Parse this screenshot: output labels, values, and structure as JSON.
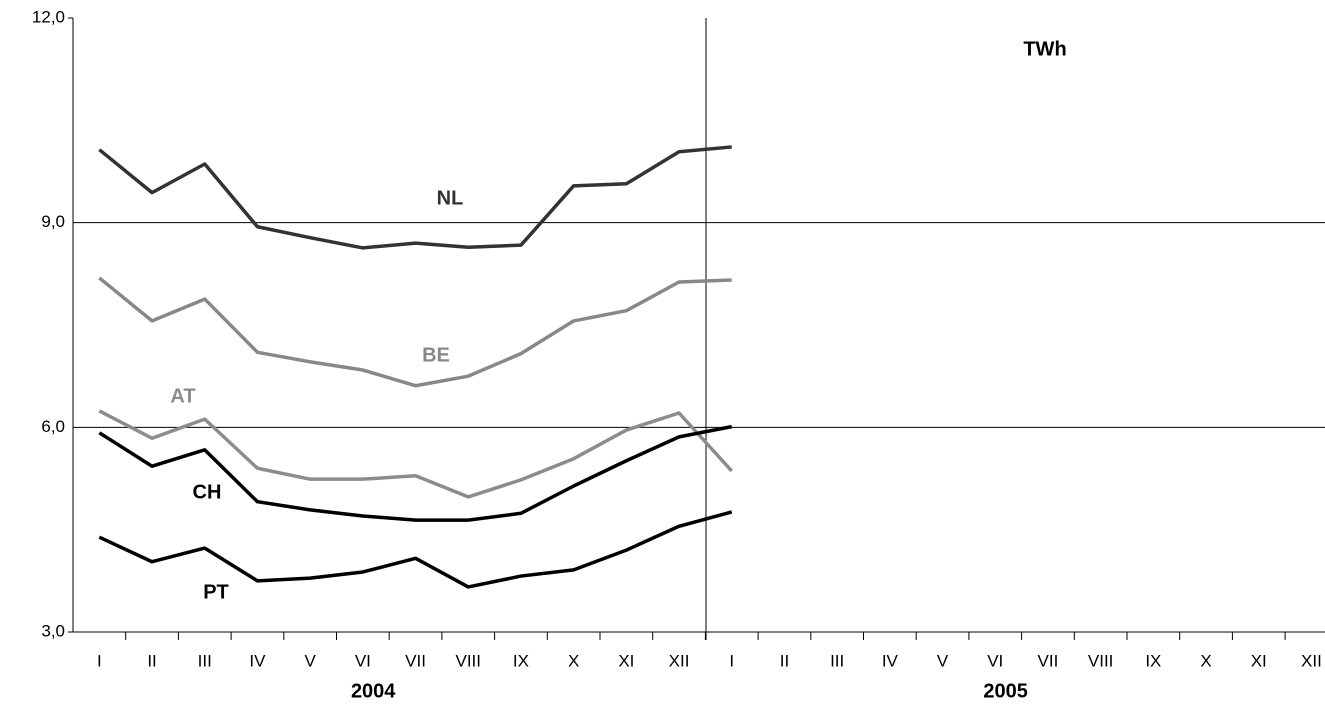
{
  "chart_data": {
    "type": "line",
    "unit_label": "TWh",
    "categories": [
      "I",
      "II",
      "III",
      "IV",
      "V",
      "VI",
      "VII",
      "VIII",
      "IX",
      "X",
      "XI",
      "XII",
      "I",
      "II",
      "III",
      "IV",
      "V",
      "VI",
      "VII",
      "VIII",
      "IX",
      "X",
      "XI",
      "XII"
    ],
    "x_groups": [
      "2004",
      "2005"
    ],
    "ylim": [
      3,
      12
    ],
    "yticks": [
      {
        "value": 3,
        "label": "3,0"
      },
      {
        "value": 6,
        "label": "6,0"
      },
      {
        "value": 9,
        "label": "9,0"
      },
      {
        "value": 12,
        "label": "12,0"
      }
    ],
    "grid": true,
    "series": [
      {
        "name": "NL",
        "color": "#333333",
        "values": [
          10.07,
          9.44,
          9.86,
          8.94,
          8.78,
          8.63,
          8.7,
          8.64,
          8.67,
          9.54,
          9.57,
          10.04,
          10.11,
          null,
          null,
          null,
          null,
          null,
          null,
          null,
          null,
          null,
          null,
          null
        ]
      },
      {
        "name": "BE",
        "color": "#888888",
        "values": [
          8.19,
          7.56,
          7.88,
          7.1,
          6.96,
          6.84,
          6.61,
          6.75,
          7.08,
          7.56,
          7.71,
          8.13,
          8.16,
          null,
          null,
          null,
          null,
          null,
          null,
          null,
          null,
          null,
          null,
          null
        ]
      },
      {
        "name": "AT",
        "color": "#8c8c8c",
        "values": [
          6.24,
          5.84,
          6.12,
          5.4,
          5.24,
          5.24,
          5.29,
          4.98,
          5.23,
          5.54,
          5.96,
          6.21,
          5.36,
          null,
          null,
          null,
          null,
          null,
          null,
          null,
          null,
          null,
          null,
          null
        ]
      },
      {
        "name": "CH",
        "color": "#000000",
        "values": [
          5.92,
          5.43,
          5.67,
          4.91,
          4.79,
          4.7,
          4.64,
          4.64,
          4.74,
          5.14,
          5.51,
          5.86,
          6.01,
          null,
          null,
          null,
          null,
          null,
          null,
          null,
          null,
          null,
          null,
          null
        ]
      },
      {
        "name": "PT",
        "color": "#000000",
        "values": [
          4.39,
          4.03,
          4.23,
          3.75,
          3.79,
          3.88,
          4.08,
          3.66,
          3.82,
          3.91,
          4.2,
          4.55,
          4.76,
          null,
          null,
          null,
          null,
          null,
          null,
          null,
          null,
          null,
          null,
          null
        ]
      }
    ]
  }
}
